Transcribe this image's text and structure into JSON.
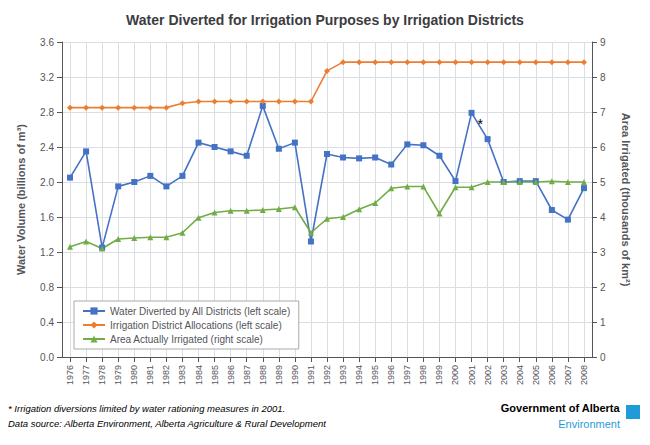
{
  "chart_data": {
    "type": "line",
    "title": "Water Diverted for Irrigation Purposes by Irrigation Districts",
    "x": [
      1976,
      1977,
      1978,
      1979,
      1980,
      1981,
      1982,
      1983,
      1984,
      1985,
      1986,
      1987,
      1988,
      1989,
      1990,
      1991,
      1992,
      1993,
      1994,
      1995,
      1996,
      1997,
      1998,
      1999,
      2000,
      2001,
      2002,
      2003,
      2004,
      2005,
      2006,
      2007,
      2008
    ],
    "series": [
      {
        "name": "Water Diverted by All Districts (left scale)",
        "color": "#4472C4",
        "marker": "square",
        "values": [
          2.05,
          2.35,
          1.25,
          1.95,
          2.0,
          2.07,
          1.95,
          2.07,
          2.45,
          2.4,
          2.35,
          2.3,
          2.87,
          2.38,
          2.45,
          1.32,
          2.32,
          2.28,
          2.27,
          2.28,
          2.2,
          2.43,
          2.42,
          2.3,
          2.01,
          2.79,
          2.49,
          2.0,
          2.01,
          2.01,
          1.68,
          1.57,
          1.93
        ]
      },
      {
        "name": "Irrigation District Allocations (left scale)",
        "color": "#ED7D31",
        "marker": "diamond",
        "values": [
          2.85,
          2.85,
          2.85,
          2.85,
          2.85,
          2.85,
          2.85,
          2.9,
          2.92,
          2.92,
          2.92,
          2.92,
          2.92,
          2.92,
          2.92,
          2.92,
          3.27,
          3.37,
          3.37,
          3.37,
          3.37,
          3.37,
          3.37,
          3.37,
          3.37,
          3.37,
          3.37,
          3.37,
          3.37,
          3.37,
          3.37,
          3.37,
          3.37
        ]
      },
      {
        "name": "Area Actually Irrigated (right scale)",
        "color": "#70AD47",
        "marker": "triangle",
        "axis": "y2",
        "values": [
          3.15,
          3.3,
          3.1,
          3.37,
          3.4,
          3.42,
          3.42,
          3.55,
          3.98,
          4.13,
          4.18,
          4.18,
          4.2,
          4.23,
          4.28,
          3.55,
          3.95,
          4.0,
          4.22,
          4.4,
          4.82,
          4.87,
          4.87,
          4.1,
          4.85,
          4.85,
          5.0,
          5.0,
          5.0,
          5.0,
          5.02,
          5.0,
          5.0
        ]
      }
    ],
    "ylabel": "Water Volume (billions of m³)",
    "y2label": "Area Irrigated (thousands of km²)",
    "xlim": [
      1975.5,
      2008.5
    ],
    "xticks": [
      1976,
      1977,
      1978,
      1979,
      1980,
      1981,
      1982,
      1983,
      1984,
      1985,
      1986,
      1987,
      1988,
      1989,
      1990,
      1991,
      1992,
      1993,
      1994,
      1995,
      1996,
      1997,
      1998,
      1999,
      2000,
      2001,
      2002,
      2003,
      2004,
      2005,
      2006,
      2007,
      2008
    ],
    "ylim": [
      0.0,
      3.6
    ],
    "yticks": [
      {
        "value": 0.0,
        "label": "0.0"
      },
      0.4,
      0.8,
      1.2,
      1.6,
      {
        "value": 2.0,
        "label": "2.0"
      },
      2.4,
      2.8,
      3.2,
      3.6
    ],
    "y2lim": [
      0.0,
      9.0
    ],
    "y2ticks": [
      0,
      1,
      2,
      3,
      4,
      5,
      6,
      7,
      8,
      9
    ],
    "grid": true,
    "legend": "lower left",
    "annotations": [
      {
        "text": "*",
        "x": 2001,
        "y": 2.79
      }
    ],
    "footnotes": [
      "* Irrigation diversions limited by water rationing measures in 2001.",
      "Data source: Alberta Environment, Alberta Agriculture & Rural Development"
    ],
    "credits": [
      {
        "text": "Government of Alberta"
      },
      {
        "text": "Environment",
        "color": "#1F9CD8"
      }
    ]
  }
}
